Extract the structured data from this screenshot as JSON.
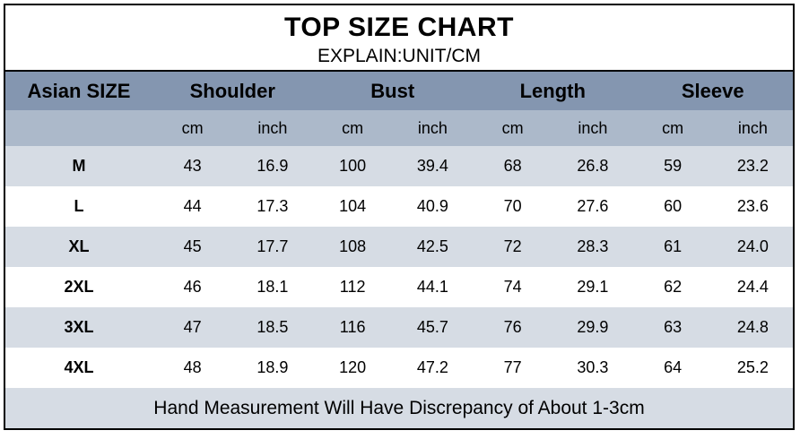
{
  "colors": {
    "header_bg": "#8496B0",
    "units_bg": "#ACB9CA",
    "alt_row_bg": "#D6DCE4",
    "row_bg": "#FFFFFF",
    "footer_bg": "#D6DCE4",
    "border": "#000000",
    "text": "#000000"
  },
  "chart_data": {
    "type": "table",
    "title": "TOP SIZE CHART",
    "subtitle": "EXPLAIN:UNIT/CM",
    "size_header": "Asian SIZE",
    "groups": [
      "Shoulder",
      "Bust",
      "Length",
      "Sleeve"
    ],
    "unit_row": [
      "cm",
      "inch",
      "cm",
      "inch",
      "cm",
      "inch",
      "cm",
      "inch"
    ],
    "rows": [
      {
        "size": "M",
        "values": [
          "43",
          "16.9",
          "100",
          "39.4",
          "68",
          "26.8",
          "59",
          "23.2"
        ]
      },
      {
        "size": "L",
        "values": [
          "44",
          "17.3",
          "104",
          "40.9",
          "70",
          "27.6",
          "60",
          "23.6"
        ]
      },
      {
        "size": "XL",
        "values": [
          "45",
          "17.7",
          "108",
          "42.5",
          "72",
          "28.3",
          "61",
          "24.0"
        ]
      },
      {
        "size": "2XL",
        "values": [
          "46",
          "18.1",
          "112",
          "44.1",
          "74",
          "29.1",
          "62",
          "24.4"
        ]
      },
      {
        "size": "3XL",
        "values": [
          "47",
          "18.5",
          "116",
          "45.7",
          "76",
          "29.9",
          "63",
          "24.8"
        ]
      },
      {
        "size": "4XL",
        "values": [
          "48",
          "18.9",
          "120",
          "47.2",
          "77",
          "30.3",
          "64",
          "25.2"
        ]
      }
    ],
    "footer_note": "Hand Measurement Will Have Discrepancy of About 1-3cm"
  }
}
